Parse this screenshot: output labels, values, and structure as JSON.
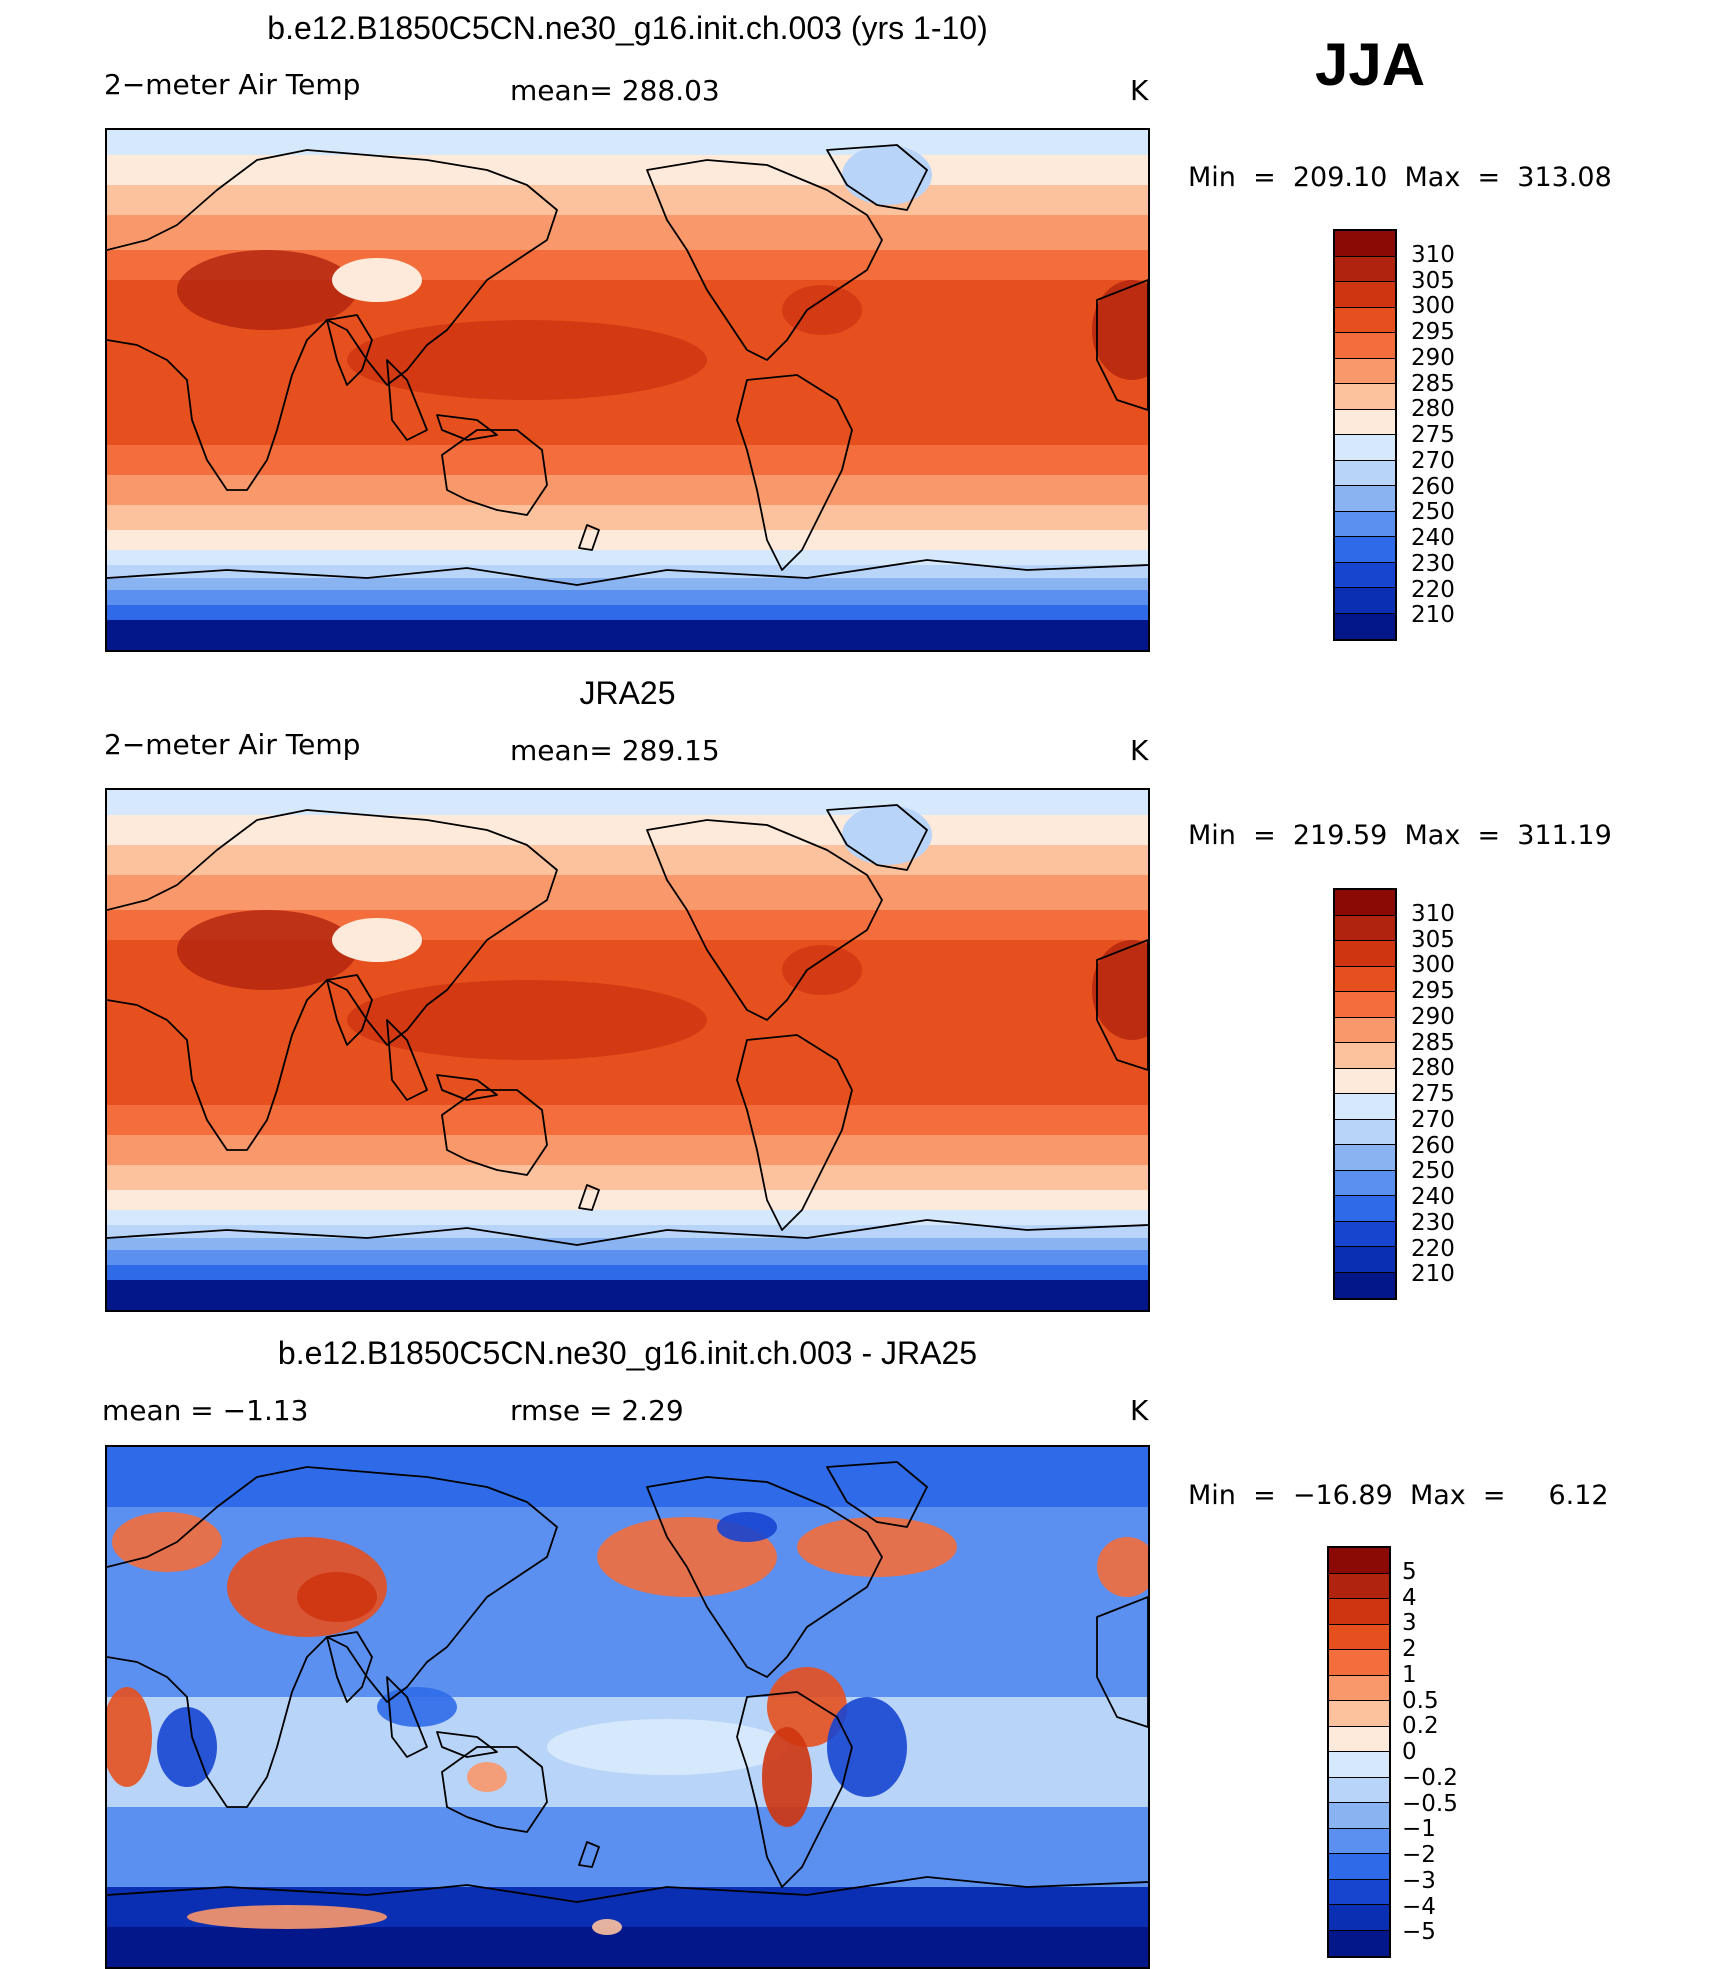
{
  "season": "JJA",
  "panels": [
    {
      "title": "b.e12.B1850C5CN.ne30_g16.init.ch.003 (yrs 1-10)",
      "left_label": "2−meter Air Temp",
      "center_label": "mean= 288.03",
      "units": "K",
      "minmax": "Min  =  209.10  Max  =  313.08",
      "colorbar": {
        "labels": [
          "310",
          "305",
          "300",
          "295",
          "290",
          "285",
          "280",
          "275",
          "270",
          "260",
          "250",
          "240",
          "230",
          "220",
          "210"
        ],
        "colors": [
          "#8b0a06",
          "#b0230e",
          "#cf3510",
          "#e6501e",
          "#f36e3c",
          "#f9986a",
          "#fcc29e",
          "#feeadb",
          "#d6e8fb",
          "#b8d4f8",
          "#8ab3f2",
          "#5b8ff0",
          "#2f6be8",
          "#1745d0",
          "#0b2fb2",
          "#03178a"
        ]
      },
      "field": "model"
    },
    {
      "title": "JRA25",
      "left_label": "2−meter Air Temp",
      "center_label": "mean= 289.15",
      "units": "K",
      "minmax": "Min  =  219.59  Max  =  311.19",
      "colorbar": {
        "labels": [
          "310",
          "305",
          "300",
          "295",
          "290",
          "285",
          "280",
          "275",
          "270",
          "260",
          "250",
          "240",
          "230",
          "220",
          "210"
        ],
        "colors": [
          "#8b0a06",
          "#b0230e",
          "#cf3510",
          "#e6501e",
          "#f36e3c",
          "#f9986a",
          "#fcc29e",
          "#feeadb",
          "#d6e8fb",
          "#b8d4f8",
          "#8ab3f2",
          "#5b8ff0",
          "#2f6be8",
          "#1745d0",
          "#0b2fb2",
          "#03178a"
        ]
      },
      "field": "obs"
    },
    {
      "title": "b.e12.B1850C5CN.ne30_g16.init.ch.003 - JRA25",
      "left_label": "mean =    −1.13",
      "center_label": "rmse =     2.29",
      "units": "K",
      "minmax": "Min  =  −16.89  Max  =     6.12",
      "colorbar": {
        "labels": [
          "5",
          "4",
          "3",
          "2",
          "1",
          "0.5",
          "0.2",
          "0",
          "−0.2",
          "−0.5",
          "−1",
          "−2",
          "−3",
          "−4",
          "−5"
        ],
        "colors": [
          "#8b0a06",
          "#b0230e",
          "#cf3510",
          "#e6501e",
          "#f36e3c",
          "#f9986a",
          "#fcc29e",
          "#feeadb",
          "#d6e8fb",
          "#b8d4f8",
          "#8ab3f2",
          "#5b8ff0",
          "#2f6be8",
          "#1745d0",
          "#0b2fb2",
          "#03178a"
        ]
      },
      "field": "diff"
    }
  ]
}
